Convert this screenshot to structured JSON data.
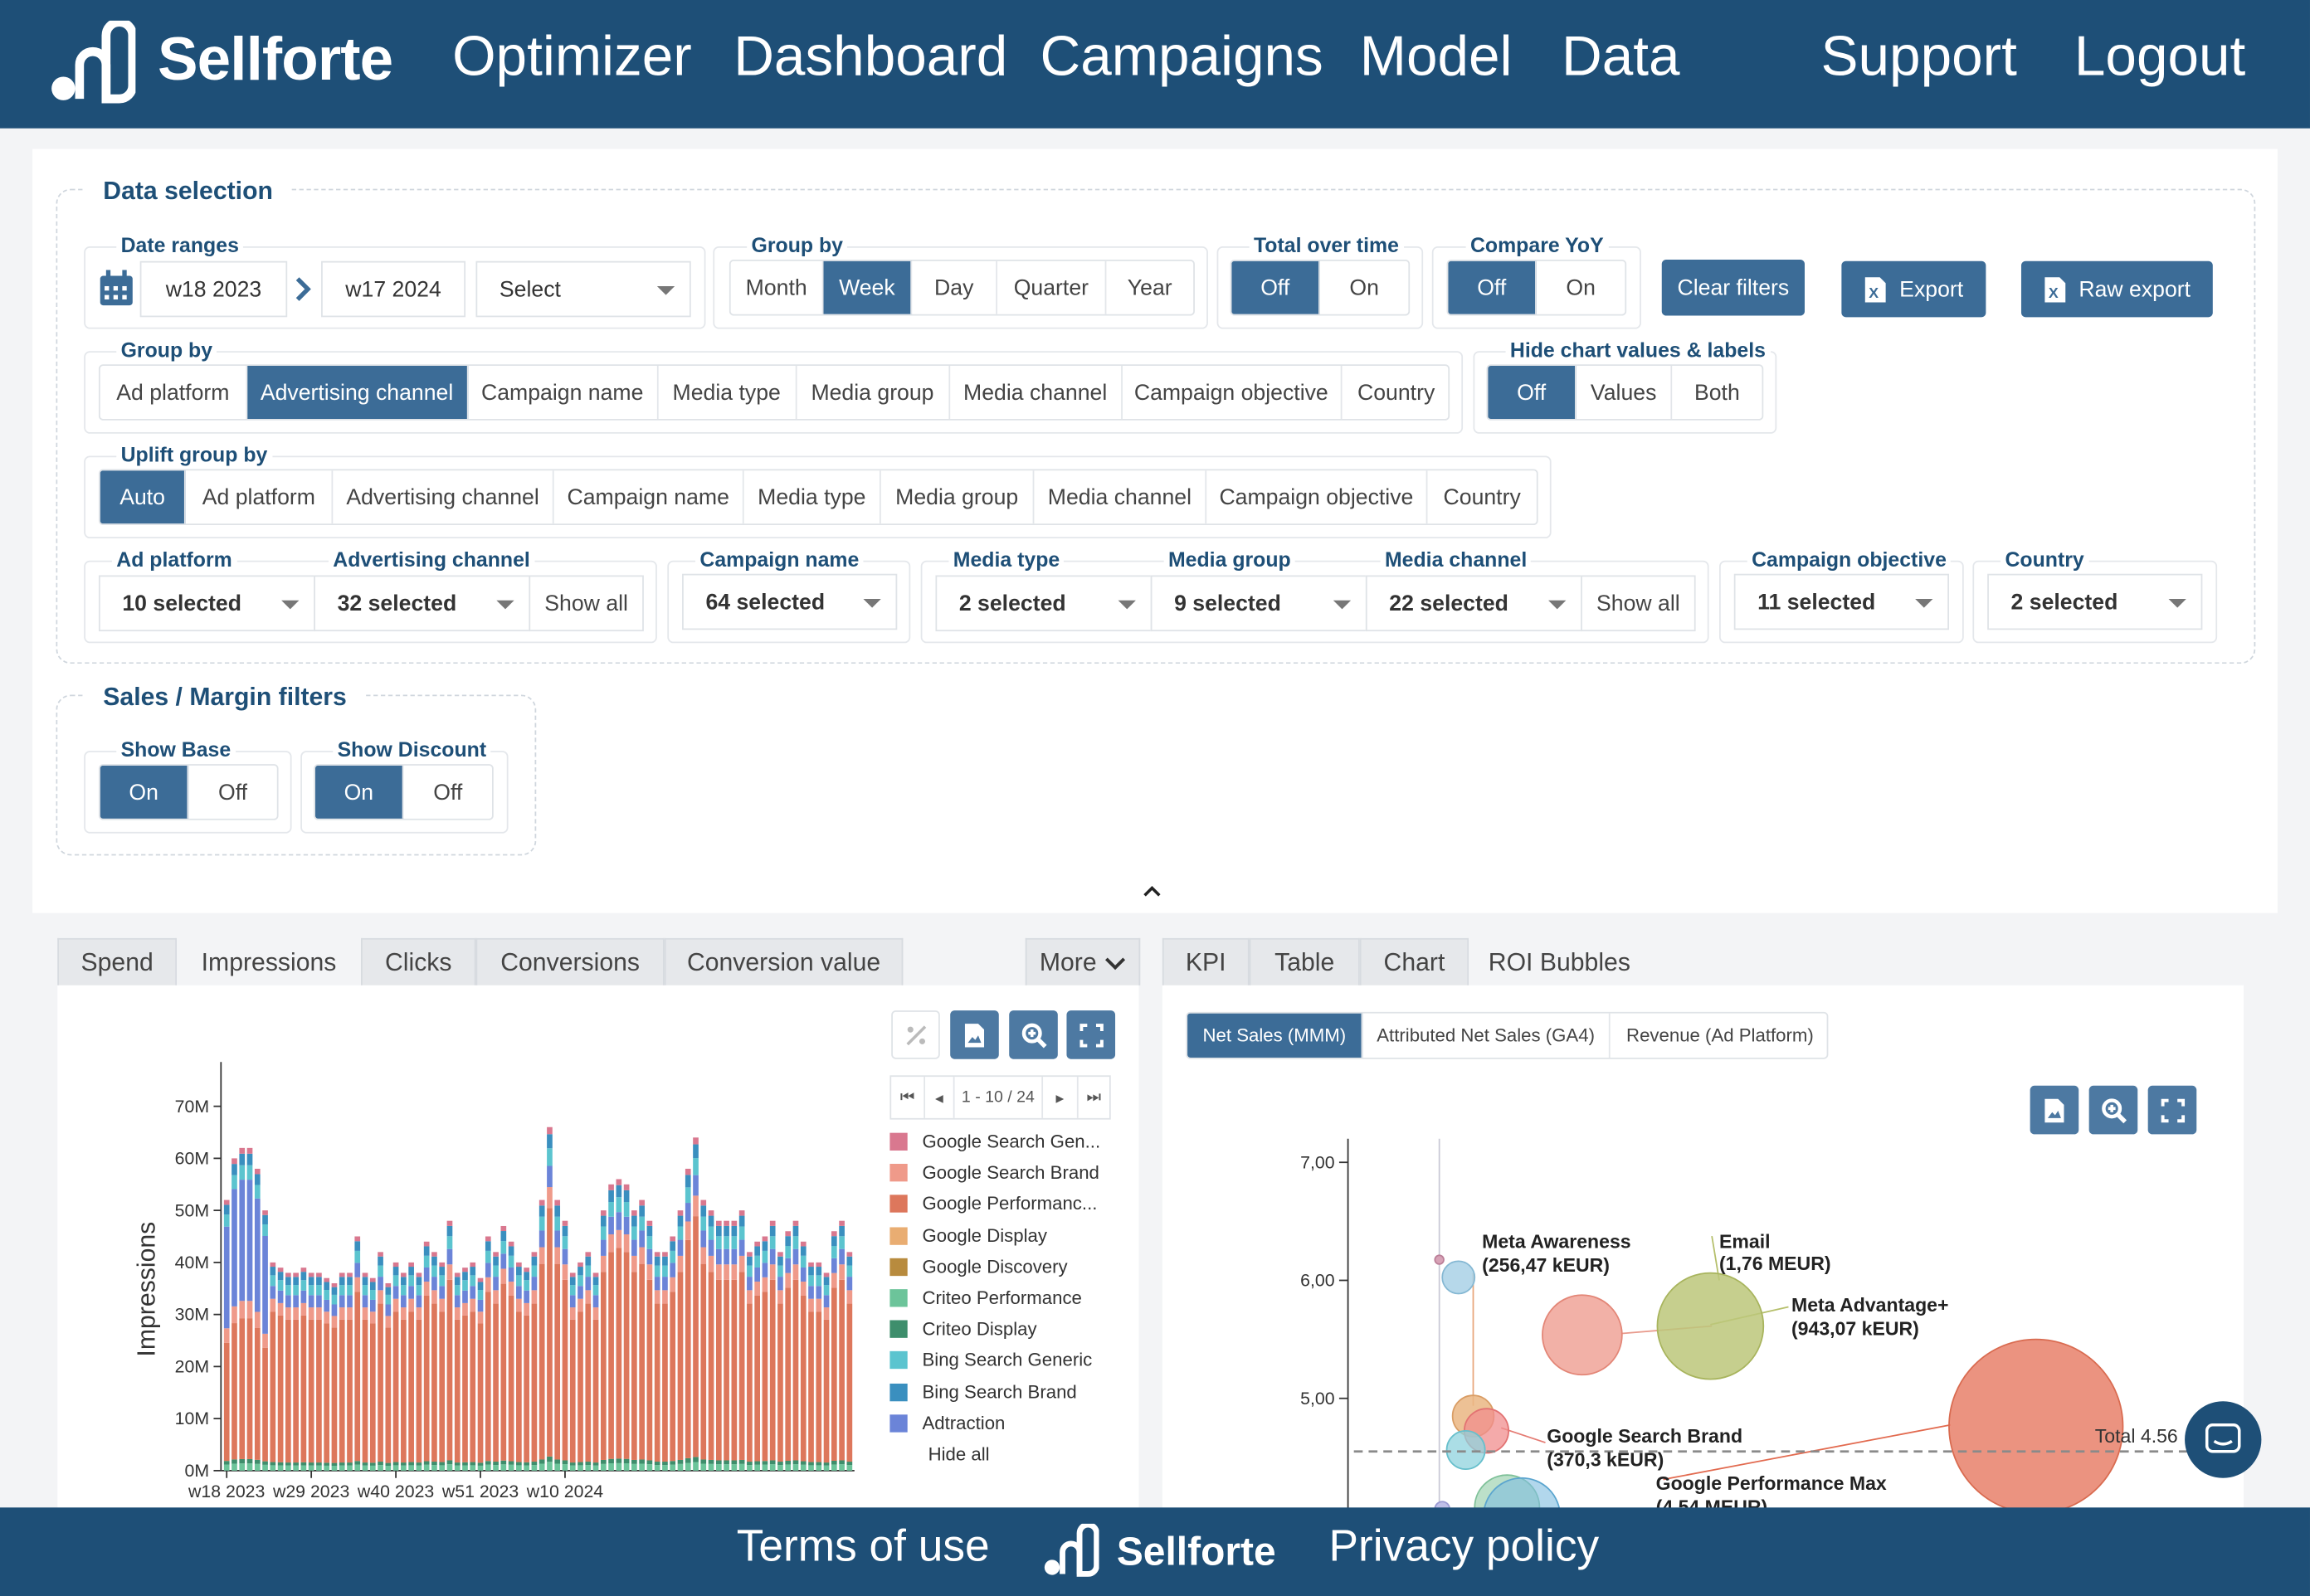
{
  "nav": {
    "logo": "Sellforte",
    "items": [
      "Optimizer",
      "Dashboard",
      "Campaigns",
      "Model",
      "Data"
    ],
    "support": "Support",
    "logout": "Logout"
  },
  "data_selection": {
    "title": "Data selection",
    "date_ranges": {
      "label": "Date ranges",
      "from": "w18 2023",
      "to": "w17 2024",
      "preset": "Select"
    },
    "time_group": {
      "label": "Group by",
      "options": [
        "Month",
        "Week",
        "Day",
        "Quarter",
        "Year"
      ],
      "selected": "Week"
    },
    "total_over_time": {
      "label": "Total over time",
      "options": [
        "Off",
        "On"
      ],
      "selected": "Off"
    },
    "compare_yoy": {
      "label": "Compare YoY",
      "options": [
        "Off",
        "On"
      ],
      "selected": "Off"
    },
    "clear_filters": "Clear filters",
    "export": "Export",
    "raw_export": "Raw export",
    "group_by": {
      "label": "Group by",
      "options": [
        "Ad platform",
        "Advertising channel",
        "Campaign name",
        "Media type",
        "Media group",
        "Media channel",
        "Campaign objective",
        "Country"
      ],
      "selected": "Advertising channel"
    },
    "hide_chart": {
      "label": "Hide chart values & labels",
      "options": [
        "Off",
        "Values",
        "Both"
      ],
      "selected": "Off"
    },
    "uplift_group_by": {
      "label": "Uplift group by",
      "options": [
        "Auto",
        "Ad platform",
        "Advertising channel",
        "Campaign name",
        "Media type",
        "Media group",
        "Media channel",
        "Campaign objective",
        "Country"
      ],
      "selected": "Auto"
    },
    "filters": {
      "ad_platform": {
        "label": "Ad platform",
        "value": "10 selected"
      },
      "advertising_channel": {
        "label": "Advertising channel",
        "value": "32 selected"
      },
      "show_all_1": "Show all",
      "campaign_name": {
        "label": "Campaign name",
        "value": "64 selected"
      },
      "media_type": {
        "label": "Media type",
        "value": "2 selected"
      },
      "media_group": {
        "label": "Media group",
        "value": "9 selected"
      },
      "media_channel": {
        "label": "Media channel",
        "value": "22 selected"
      },
      "show_all_2": "Show all",
      "campaign_objective": {
        "label": "Campaign objective",
        "value": "11 selected"
      },
      "country": {
        "label": "Country",
        "value": "2 selected"
      }
    }
  },
  "sales_margin": {
    "title": "Sales / Margin filters",
    "show_base": {
      "label": "Show Base",
      "options": [
        "On",
        "Off"
      ],
      "selected": "On"
    },
    "show_discount": {
      "label": "Show Discount",
      "options": [
        "On",
        "Off"
      ],
      "selected": "On"
    }
  },
  "left_tabs": {
    "items": [
      "Spend",
      "Impressions",
      "Clicks",
      "Conversions",
      "Conversion value"
    ],
    "active": "Impressions",
    "more": "More"
  },
  "right_tabs": {
    "items": [
      "KPI",
      "Table",
      "Chart",
      "ROI Bubbles"
    ],
    "active": "ROI Bubbles"
  },
  "legend_pager": "1 - 10 / 24",
  "chart_data": [
    {
      "type": "bar",
      "stacked": true,
      "ylabel": "Impressions",
      "ylim": [
        0,
        70000000
      ],
      "yticks": [
        "0M",
        "10M",
        "20M",
        "30M",
        "40M",
        "50M",
        "60M",
        "70M"
      ],
      "xticks": [
        "w18 2023",
        "w29 2023",
        "w40 2023",
        "w51 2023",
        "w10 2024"
      ],
      "legend": [
        "Google Search Gen...",
        "Google Search Brand",
        "Google Performanc...",
        "Google Display",
        "Google Discovery",
        "Criteo Performance",
        "Criteo Display",
        "Bing Search Generic",
        "Bing Search Brand",
        "Adtraction"
      ],
      "legend_colors": [
        "#d9788f",
        "#ef9a8a",
        "#dd775c",
        "#e9ad72",
        "#b88b3e",
        "#6cc49a",
        "#3e8e6c",
        "#5bc4cf",
        "#3a8fbf",
        "#6b84d8"
      ],
      "legend_hide_all": "Hide all",
      "totals_M": [
        52,
        60,
        62,
        62,
        58,
        50,
        40,
        39,
        38,
        38,
        39,
        38,
        38,
        37,
        36,
        38,
        38,
        45,
        38,
        37,
        42,
        36,
        40,
        38,
        40,
        38,
        44,
        42,
        40,
        48,
        38,
        39,
        40,
        37,
        45,
        42,
        47,
        44,
        40,
        39,
        42,
        52,
        66,
        52,
        48,
        38,
        40,
        42,
        38,
        50,
        55,
        56,
        55,
        50,
        52,
        48,
        42,
        42,
        45,
        50,
        58,
        64,
        52,
        50,
        48,
        48,
        48,
        50,
        42,
        44,
        45,
        48,
        42,
        46,
        48,
        44,
        40,
        40,
        38,
        46,
        48,
        42
      ]
    },
    {
      "type": "scatter",
      "subtype": "bubble",
      "kpi_options": [
        "Net Sales (MMM)",
        "Attributed Net Sales (GA4)",
        "Revenue (Ad Platform)"
      ],
      "kpi_selected": "Net Sales (MMM)",
      "yticks": [
        "7,00",
        "6,00",
        "5,00"
      ],
      "ylim_visible": [
        4.1,
        7.2
      ],
      "total_line_label": "Total 4.56",
      "total_line_y": 4.56,
      "points": [
        {
          "label": "Meta Awareness",
          "value": "(256,47 kEUR)",
          "y": 5.95
        },
        {
          "label": "Email",
          "value": "(1,76 MEUR)",
          "y": 5.62
        },
        {
          "label": "Meta Advantage+",
          "value": "(943,07 kEUR)",
          "y": 5.62
        },
        {
          "label": "Google Search Brand",
          "value": "(370,3 kEUR)",
          "y": 4.72
        },
        {
          "label": "Google Performance Max",
          "value": "(4,54 MEUR)",
          "y": 4.76
        }
      ]
    }
  ],
  "footer": {
    "terms": "Terms of use",
    "logo": "Sellforte",
    "privacy": "Privacy policy"
  }
}
